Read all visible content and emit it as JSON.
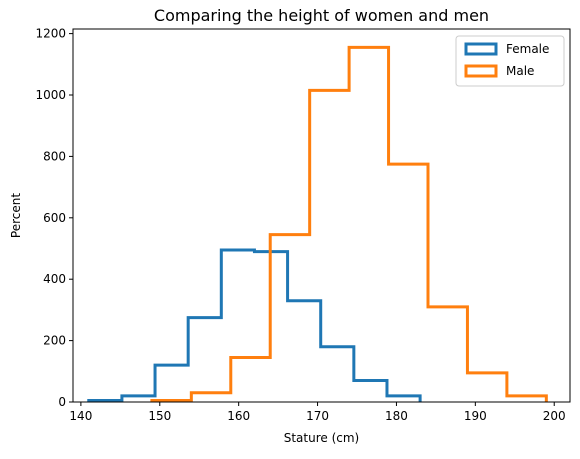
{
  "chart_data": {
    "type": "histogram",
    "title": "Comparing the height of women and men",
    "xlabel": "Stature (cm)",
    "ylabel": "Percent",
    "xlim": [
      139,
      202
    ],
    "ylim": [
      0,
      1215
    ],
    "xticks": [
      140,
      150,
      160,
      170,
      180,
      190,
      200
    ],
    "yticks": [
      0,
      200,
      400,
      600,
      800,
      1000,
      1200
    ],
    "grid": false,
    "legend_position": "top-right",
    "series": [
      {
        "name": "Female",
        "color": "#1f77b4",
        "bin_edges": [
          141,
          145.2,
          149.4,
          153.6,
          157.8,
          162,
          166.2,
          170.4,
          174.6,
          178.8,
          183
        ],
        "values": [
          5,
          20,
          120,
          275,
          495,
          490,
          330,
          180,
          70,
          20
        ]
      },
      {
        "name": "Male",
        "color": "#ff7f0e",
        "bin_edges": [
          149,
          154,
          159,
          164,
          169,
          174,
          179,
          184,
          189,
          194,
          199
        ],
        "values": [
          5,
          30,
          145,
          545,
          1015,
          1155,
          775,
          310,
          95,
          20
        ]
      }
    ]
  }
}
